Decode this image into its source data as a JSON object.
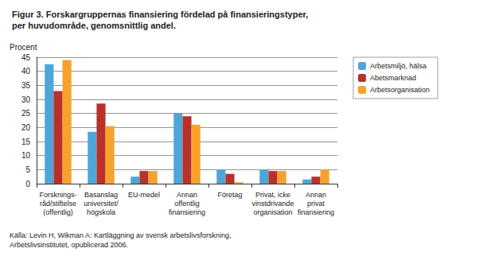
{
  "chart_data": {
    "type": "bar",
    "title": "Figur 3. Forskargruppernas finansiering fördelad på finansieringstyper,\nper huvudområde, genomsnittlig andel.",
    "y_label": "Procent",
    "source": "Källa: Levin H, Wikman A: Kartläggning av svensk arbetslivsforskning,\nArbetslivsinstitutet, opublicerad 2006.",
    "categories": [
      "Forsknings-\nråd/stiftelse\n(offentlig)",
      "Basanslag\nuniversitet/\nhögskola",
      "EU-medel",
      "Annan\noffentlig\nfinansiering",
      "Företag",
      "Privat, icke\nvinstdrivande\norganisation",
      "Annan\nprivat\nfinansiering"
    ],
    "series": [
      {
        "name": "Arbetsmiljö, hälsa",
        "color": "#4ea6d8",
        "values": [
          42.5,
          18.5,
          2.5,
          25,
          5,
          5,
          1.5
        ]
      },
      {
        "name": "Abetsmarknad",
        "color": "#b8312b",
        "values": [
          33,
          28.5,
          4.5,
          24,
          3.5,
          4.5,
          2.5
        ]
      },
      {
        "name": "Arbetsorganisation",
        "color": "#f8a22e",
        "values": [
          44,
          20.5,
          4.5,
          21,
          0.5,
          4.5,
          5
        ]
      }
    ],
    "ylim": [
      0,
      45
    ],
    "yticks": [
      0,
      5,
      10,
      15,
      20,
      25,
      30,
      35,
      40,
      45
    ],
    "grid": true,
    "legend": "right"
  }
}
